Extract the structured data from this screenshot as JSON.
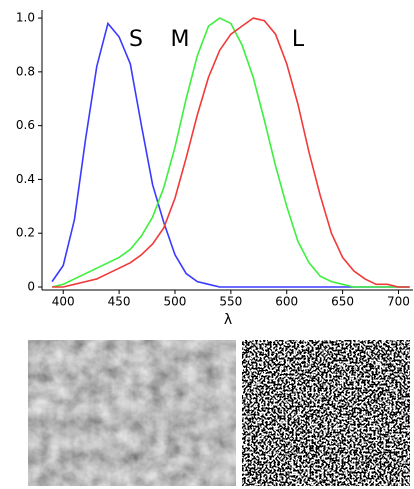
{
  "chart_data": {
    "type": "line",
    "x_label": "λ",
    "annotations": [
      "S",
      "M",
      "L"
    ],
    "x": [
      390,
      400,
      410,
      420,
      430,
      440,
      450,
      460,
      470,
      480,
      490,
      500,
      510,
      520,
      530,
      540,
      550,
      560,
      570,
      580,
      590,
      600,
      610,
      620,
      630,
      640,
      650,
      660,
      670,
      680,
      690,
      700,
      710
    ],
    "series": [
      {
        "name": "S",
        "color": "#3a3aff",
        "values": [
          0.02,
          0.08,
          0.25,
          0.55,
          0.82,
          0.98,
          0.93,
          0.83,
          0.6,
          0.38,
          0.24,
          0.12,
          0.05,
          0.02,
          0.01,
          0,
          0,
          0,
          0,
          0,
          0,
          0,
          0,
          0,
          0,
          0,
          0,
          0,
          0,
          0,
          0,
          0,
          0
        ]
      },
      {
        "name": "M",
        "color": "#3ef03e",
        "values": [
          0,
          0.01,
          0.03,
          0.05,
          0.07,
          0.09,
          0.11,
          0.14,
          0.19,
          0.26,
          0.37,
          0.52,
          0.7,
          0.86,
          0.97,
          1.0,
          0.98,
          0.9,
          0.78,
          0.62,
          0.45,
          0.3,
          0.17,
          0.09,
          0.04,
          0.02,
          0.01,
          0,
          0,
          0,
          0,
          0,
          0
        ]
      },
      {
        "name": "L",
        "color": "#f03a3a",
        "values": [
          0,
          0,
          0.01,
          0.02,
          0.03,
          0.05,
          0.07,
          0.09,
          0.12,
          0.16,
          0.22,
          0.33,
          0.48,
          0.64,
          0.78,
          0.88,
          0.94,
          0.97,
          1.0,
          0.99,
          0.94,
          0.83,
          0.68,
          0.5,
          0.34,
          0.2,
          0.11,
          0.06,
          0.03,
          0.01,
          0.01,
          0,
          0
        ]
      }
    ],
    "xlim": [
      381,
      713
    ],
    "xticks": [
      400,
      450,
      500,
      550,
      600,
      650,
      700
    ],
    "ylim": [
      0,
      1.03
    ],
    "yticks": [
      0,
      0.2,
      0.4,
      0.6,
      0.8,
      {
        "value": 1,
        "label": "1.0"
      }
    ],
    "grid": false
  }
}
